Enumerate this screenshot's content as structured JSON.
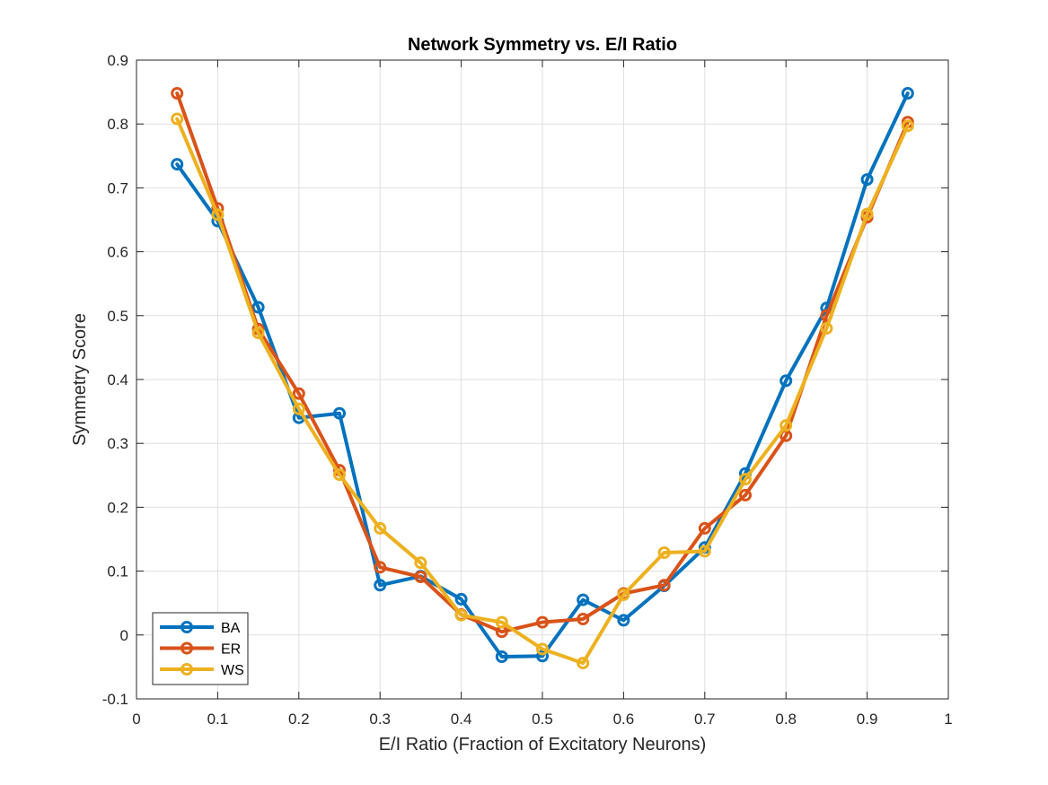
{
  "chart_data": {
    "type": "line",
    "title": "Network Symmetry vs. E/I Ratio",
    "xlabel": "E/I Ratio (Fraction of Excitatory Neurons)",
    "ylabel": "Symmetry Score",
    "xlim": [
      0,
      1
    ],
    "ylim": [
      -0.1,
      0.9
    ],
    "xticks": [
      0,
      0.1,
      0.2,
      0.3,
      0.4,
      0.5,
      0.6,
      0.7,
      0.8,
      0.9,
      1
    ],
    "xtick_labels": [
      "0",
      "0.1",
      "0.2",
      "0.3",
      "0.4",
      "0.5",
      "0.6",
      "0.7",
      "0.8",
      "0.9",
      "1"
    ],
    "yticks": [
      -0.1,
      0,
      0.1,
      0.2,
      0.3,
      0.4,
      0.5,
      0.6,
      0.7,
      0.8,
      0.9
    ],
    "ytick_labels": [
      "-0.1",
      "0",
      "0.1",
      "0.2",
      "0.3",
      "0.4",
      "0.5",
      "0.6",
      "0.7",
      "0.8",
      "0.9"
    ],
    "grid": true,
    "legend_position": "bottom-left",
    "marker": "circle",
    "x": [
      0.05,
      0.1,
      0.15,
      0.2,
      0.25,
      0.3,
      0.35,
      0.4,
      0.45,
      0.5,
      0.55,
      0.6,
      0.65,
      0.7,
      0.75,
      0.8,
      0.85,
      0.9,
      0.95
    ],
    "series": [
      {
        "name": "BA",
        "color": "#0072BD",
        "values": [
          0.737,
          0.648,
          0.513,
          0.34,
          0.347,
          0.078,
          0.092,
          0.056,
          -0.034,
          -0.033,
          0.055,
          0.023,
          0.077,
          0.137,
          0.253,
          0.398,
          0.512,
          0.713,
          0.848
        ]
      },
      {
        "name": "ER",
        "color": "#D95319",
        "values": [
          0.848,
          0.668,
          0.479,
          0.378,
          0.258,
          0.106,
          0.091,
          0.032,
          0.005,
          0.02,
          0.025,
          0.065,
          0.078,
          0.167,
          0.219,
          0.312,
          0.5,
          0.654,
          0.803
        ]
      },
      {
        "name": "WS",
        "color": "#EDB120",
        "values": [
          0.808,
          0.658,
          0.473,
          0.354,
          0.251,
          0.167,
          0.113,
          0.031,
          0.02,
          -0.022,
          -0.044,
          0.063,
          0.129,
          0.131,
          0.244,
          0.328,
          0.48,
          0.659,
          0.797
        ]
      }
    ]
  }
}
